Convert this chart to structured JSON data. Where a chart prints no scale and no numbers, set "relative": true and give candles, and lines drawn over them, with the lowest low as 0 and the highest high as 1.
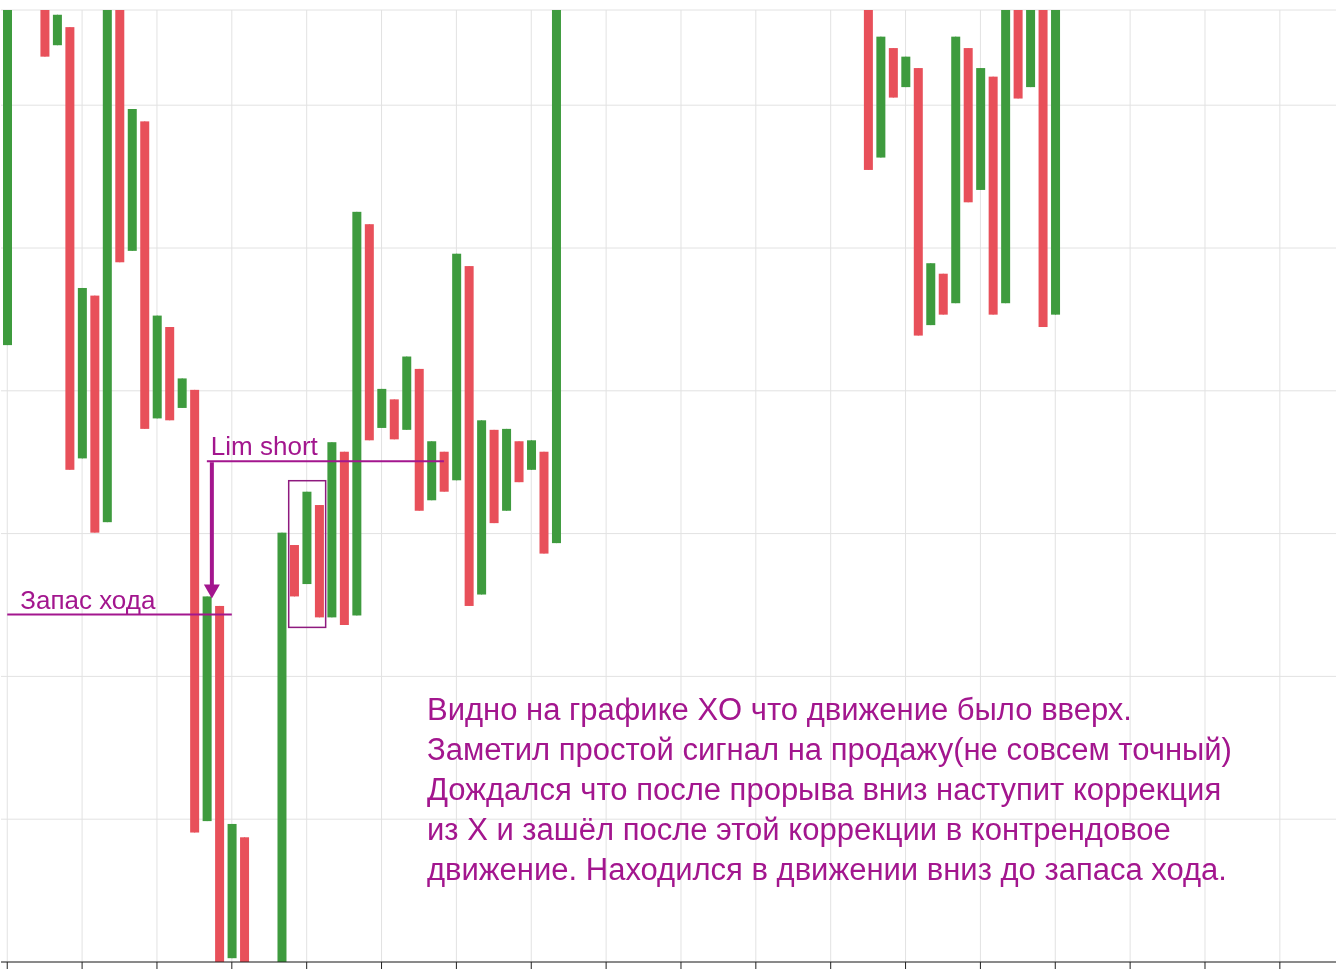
{
  "chart_data": {
    "type": "candlestick",
    "relative": true,
    "grid": true,
    "categories": [
      null,
      null,
      null,
      null,
      null,
      null,
      null,
      null,
      null,
      null,
      null,
      null,
      null,
      null,
      null,
      null,
      null,
      null,
      null,
      null,
      null,
      null,
      null,
      null,
      null,
      null,
      null,
      null,
      null,
      null,
      null,
      null,
      null,
      null,
      null,
      null,
      null,
      null,
      null,
      null,
      null,
      null,
      null,
      null,
      null,
      null,
      null,
      null,
      null,
      null,
      null,
      null,
      null,
      null,
      null,
      null,
      null,
      null,
      null,
      null,
      null,
      null,
      null,
      null,
      null,
      null,
      null,
      null,
      null,
      null,
      null,
      null,
      null,
      null,
      null,
      null,
      null,
      null,
      null,
      null,
      null,
      null,
      null,
      null,
      null,
      null,
      null,
      null,
      null,
      null,
      null,
      null,
      null,
      null,
      null,
      null,
      null,
      null,
      null,
      null,
      null,
      null,
      null,
      null,
      null,
      null,
      null
    ],
    "ohlc": [
      [
        0.648,
        1,
        0.648,
        1
      ],
      null,
      null,
      [
        1,
        1,
        0.951,
        0.951
      ],
      [
        0.963,
        0.995,
        0.963,
        0.995
      ],
      [
        0.982,
        0.982,
        0.517,
        0.517
      ],
      [
        0.529,
        0.708,
        0.529,
        0.708
      ],
      [
        0.7,
        0.7,
        0.451,
        0.451
      ],
      [
        0.462,
        1,
        0.462,
        1
      ],
      [
        1,
        1,
        0.735,
        0.735
      ],
      [
        0.747,
        0.896,
        0.747,
        0.896
      ],
      [
        0.883,
        0.883,
        0.56,
        0.56
      ],
      [
        0.571,
        0.679,
        0.571,
        0.679
      ],
      [
        0.667,
        0.667,
        0.569,
        0.569
      ],
      [
        0.582,
        0.613,
        0.582,
        0.613
      ],
      [
        0.601,
        0.601,
        0.136,
        0.136
      ],
      [
        0.148,
        0.384,
        0.148,
        0.384
      ],
      [
        0.374,
        0.374,
        0,
        0
      ],
      [
        0.004,
        0.145,
        0.004,
        0.145
      ],
      [
        0.131,
        0.131,
        0,
        0
      ],
      null,
      null,
      [
        0,
        0.451,
        0,
        0.451
      ],
      [
        0.438,
        0.438,
        0.384,
        0.384
      ],
      [
        0.397,
        0.494,
        0.397,
        0.494
      ],
      [
        0.48,
        0.48,
        0.362,
        0.362
      ],
      [
        0.362,
        0.546,
        0.362,
        0.546
      ],
      [
        0.536,
        0.536,
        0.354,
        0.354
      ],
      [
        0.364,
        0.788,
        0.364,
        0.788
      ],
      [
        0.775,
        0.775,
        0.548,
        0.548
      ],
      [
        0.561,
        0.602,
        0.561,
        0.602
      ],
      [
        0.591,
        0.591,
        0.549,
        0.549
      ],
      [
        0.559,
        0.636,
        0.559,
        0.636
      ],
      [
        0.623,
        0.623,
        0.474,
        0.474
      ],
      [
        0.485,
        0.547,
        0.485,
        0.547
      ],
      [
        0.536,
        0.536,
        0.494,
        0.494
      ],
      [
        0.506,
        0.744,
        0.506,
        0.744
      ],
      [
        0.731,
        0.731,
        0.374,
        0.374
      ],
      [
        0.386,
        0.569,
        0.386,
        0.569
      ],
      [
        0.559,
        0.559,
        0.461,
        0.461
      ],
      [
        0.474,
        0.56,
        0.474,
        0.56
      ],
      [
        0.547,
        0.547,
        0.504,
        0.504
      ],
      [
        0.517,
        0.548,
        0.517,
        0.548
      ],
      [
        0.536,
        0.536,
        0.429,
        0.429
      ],
      [
        0.44,
        1,
        0.44,
        1
      ],
      null,
      null,
      null,
      null,
      null,
      null,
      null,
      null,
      null,
      null,
      null,
      null,
      null,
      null,
      null,
      null,
      null,
      null,
      null,
      null,
      null,
      null,
      null,
      null,
      [
        1,
        1,
        0.832,
        0.832
      ],
      [
        0.845,
        0.972,
        0.845,
        0.972
      ],
      [
        0.96,
        0.96,
        0.908,
        0.908
      ],
      [
        0.919,
        0.951,
        0.919,
        0.951
      ],
      [
        0.939,
        0.939,
        0.658,
        0.658
      ],
      [
        0.669,
        0.734,
        0.669,
        0.734
      ],
      [
        0.723,
        0.723,
        0.68,
        0.68
      ],
      [
        0.692,
        0.972,
        0.692,
        0.972
      ],
      [
        0.96,
        0.96,
        0.798,
        0.798
      ],
      [
        0.811,
        0.939,
        0.811,
        0.939
      ],
      [
        0.93,
        0.93,
        0.68,
        0.68
      ],
      [
        0.692,
        1,
        0.692,
        1
      ],
      [
        1,
        1,
        0.907,
        0.907
      ],
      [
        0.919,
        1,
        0.919,
        1
      ],
      [
        1,
        1,
        0.667,
        0.667
      ],
      [
        0.68,
        1,
        0.68,
        1
      ],
      null,
      null,
      null,
      null,
      null,
      null,
      null,
      null,
      null,
      null,
      null,
      null,
      null,
      null,
      null,
      null,
      null,
      null,
      null,
      null,
      null,
      null
    ],
    "colors": [
      "#3e9b3e",
      null,
      null,
      "#e8505a",
      "#3e9b3e",
      "#e8505a",
      "#3e9b3e",
      "#e8505a",
      "#3e9b3e",
      "#e8505a",
      "#3e9b3e",
      "#e8505a",
      "#3e9b3e",
      "#e8505a",
      "#3e9b3e",
      "#e8505a",
      "#3e9b3e",
      "#e8505a",
      "#3e9b3e",
      "#e8505a",
      null,
      null,
      "#3e9b3e",
      "#e8505a",
      "#3e9b3e",
      "#e8505a",
      "#3e9b3e",
      "#e8505a",
      "#3e9b3e",
      "#e8505a",
      "#3e9b3e",
      "#e8505a",
      "#3e9b3e",
      "#e8505a",
      "#3e9b3e",
      "#e8505a",
      "#3e9b3e",
      "#e8505a",
      "#3e9b3e",
      "#e8505a",
      "#3e9b3e",
      "#e8505a",
      "#3e9b3e",
      "#e8505a",
      "#3e9b3e",
      null,
      null,
      null,
      null,
      null,
      null,
      null,
      null,
      null,
      null,
      null,
      null,
      null,
      null,
      null,
      null,
      null,
      null,
      null,
      null,
      null,
      null,
      null,
      null,
      "#e8505a",
      "#3e9b3e",
      "#e8505a",
      "#3e9b3e",
      "#e8505a",
      "#3e9b3e",
      "#e8505a",
      "#3e9b3e",
      "#e8505a",
      "#3e9b3e",
      "#e8505a",
      "#3e9b3e",
      "#e8505a",
      "#3e9b3e",
      "#e8505a",
      "#3e9b3e",
      null,
      null,
      null,
      null,
      null,
      null,
      null,
      null,
      null,
      null,
      null,
      null,
      null,
      null,
      null,
      null,
      null,
      null,
      null,
      null,
      null,
      null
    ],
    "ref_lines": [
      {
        "axis": "y",
        "value": 0.526,
        "label": "Lim short",
        "color": "#a3168e"
      },
      {
        "axis": "y",
        "value": 0.365,
        "label": "Запас хода",
        "color": "#a3168e"
      }
    ],
    "annotations": [
      "Видно на графике XO что движение было вверх.\nЗаметил простой сигнал на продажу(не совсем точный)\nДождался что после прорыва вниз наступит коррекция\nиз X и зашёл после этой коррекции в контрендовое\nдвижение. Находился в движении вниз до запаса хода."
    ]
  }
}
